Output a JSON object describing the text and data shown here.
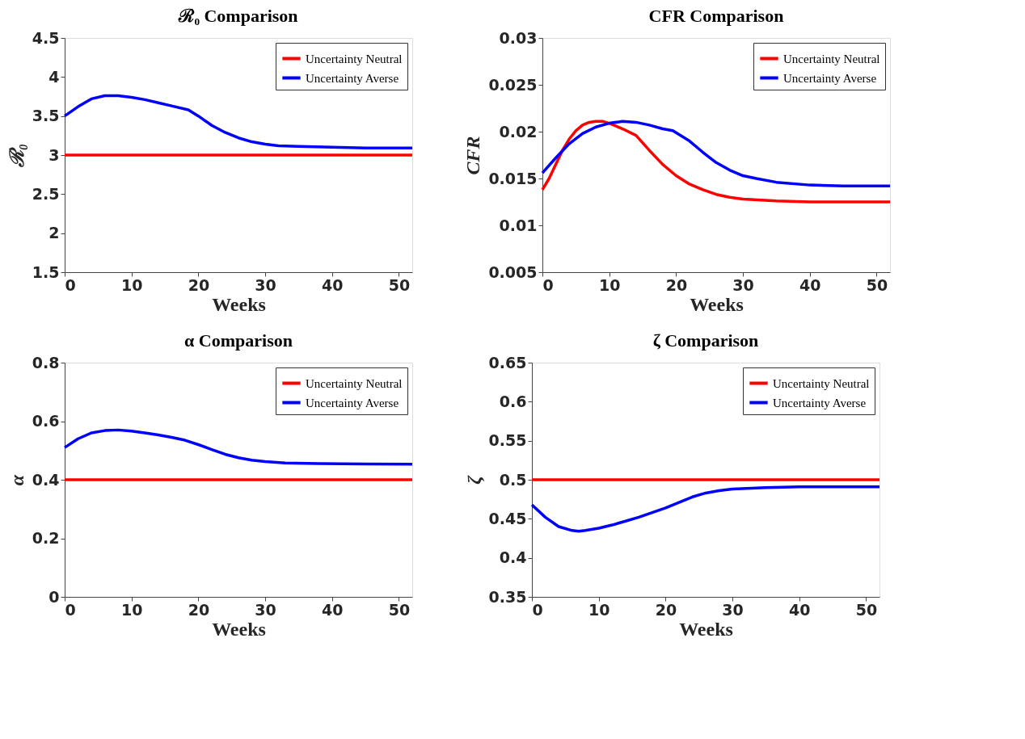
{
  "chart_data": [
    {
      "type": "line",
      "title": "ℛ₀ Comparison",
      "xlabel": "Weeks",
      "ylabel": "ℛ₀",
      "xlim": [
        0,
        52
      ],
      "xticks": [
        0,
        10,
        20,
        30,
        40,
        50
      ],
      "ylim": [
        1.5,
        4.5
      ],
      "yticks": [
        1.5,
        2,
        2.5,
        3,
        3.5,
        4,
        4.5
      ],
      "legend": "top right",
      "grid": false,
      "series": [
        {
          "name": "Uncertainty Neutral",
          "color": "#ff0000",
          "x": [
            0,
            52
          ],
          "values": [
            3,
            3
          ]
        },
        {
          "name": "Uncertainty Averse",
          "color": "#0000ff",
          "x": [
            0,
            2,
            4,
            6,
            8,
            10,
            12,
            14,
            16,
            18.5,
            20,
            22,
            24,
            26,
            28,
            30,
            32,
            35,
            40,
            45,
            52
          ],
          "values": [
            3.5,
            3.62,
            3.72,
            3.76,
            3.76,
            3.74,
            3.71,
            3.67,
            3.63,
            3.58,
            3.5,
            3.38,
            3.29,
            3.22,
            3.17,
            3.14,
            3.12,
            3.11,
            3.1,
            3.09,
            3.09
          ]
        }
      ]
    },
    {
      "type": "line",
      "title": "CFR Comparison",
      "xlabel": "Weeks",
      "ylabel": "CFR",
      "xlim": [
        0,
        52
      ],
      "xticks": [
        0,
        10,
        20,
        30,
        40,
        50
      ],
      "ylim": [
        0.005,
        0.03
      ],
      "yticks": [
        0.005,
        0.01,
        0.015,
        0.02,
        0.025,
        0.03
      ],
      "legend": "top right",
      "grid": false,
      "series": [
        {
          "name": "Uncertainty Neutral",
          "color": "#ff0000",
          "x": [
            0,
            1,
            2,
            3,
            4,
            5,
            6,
            7,
            8,
            9,
            10,
            12,
            14,
            16,
            18,
            20,
            22,
            24,
            26,
            28,
            30,
            35,
            40,
            52
          ],
          "values": [
            0.0138,
            0.015,
            0.0165,
            0.018,
            0.0192,
            0.0201,
            0.0207,
            0.021,
            0.0211,
            0.0211,
            0.0209,
            0.0203,
            0.0196,
            0.018,
            0.0165,
            0.0153,
            0.0144,
            0.0138,
            0.0133,
            0.013,
            0.0128,
            0.0126,
            0.0125,
            0.0125
          ]
        },
        {
          "name": "Uncertainty Averse",
          "color": "#0000ff",
          "x": [
            0,
            2,
            4,
            6,
            8,
            10,
            12,
            14,
            16,
            18,
            19.5,
            22,
            24,
            26,
            28,
            30,
            32,
            35,
            40,
            45,
            52
          ],
          "values": [
            0.0156,
            0.0172,
            0.0187,
            0.0198,
            0.0205,
            0.0209,
            0.0211,
            0.021,
            0.0207,
            0.0203,
            0.0201,
            0.019,
            0.0178,
            0.0167,
            0.0159,
            0.0153,
            0.015,
            0.0146,
            0.0143,
            0.0142,
            0.0142
          ]
        }
      ]
    },
    {
      "type": "line",
      "title": "α Comparison",
      "xlabel": "Weeks",
      "ylabel": "α",
      "xlim": [
        0,
        52
      ],
      "xticks": [
        0,
        10,
        20,
        30,
        40,
        50
      ],
      "ylim": [
        0,
        0.8
      ],
      "yticks": [
        0,
        0.2,
        0.4,
        0.6,
        0.8
      ],
      "legend": "top right",
      "grid": false,
      "series": [
        {
          "name": "Uncertainty Neutral",
          "color": "#ff0000",
          "x": [
            0,
            52
          ],
          "values": [
            0.4,
            0.4
          ]
        },
        {
          "name": "Uncertainty Averse",
          "color": "#0000ff",
          "x": [
            0,
            2,
            4,
            6,
            8,
            10,
            12,
            14,
            16,
            18,
            20,
            22,
            24,
            26,
            28,
            30,
            33,
            38,
            45,
            52
          ],
          "values": [
            0.51,
            0.54,
            0.56,
            0.568,
            0.57,
            0.566,
            0.56,
            0.553,
            0.545,
            0.535,
            0.52,
            0.503,
            0.487,
            0.475,
            0.467,
            0.462,
            0.457,
            0.455,
            0.454,
            0.453
          ]
        }
      ]
    },
    {
      "type": "line",
      "title": "ζ Comparison",
      "xlabel": "Weeks",
      "ylabel": "ζ",
      "xlim": [
        0,
        52
      ],
      "xticks": [
        0,
        10,
        20,
        30,
        40,
        50
      ],
      "ylim": [
        0.35,
        0.65
      ],
      "yticks": [
        0.35,
        0.4,
        0.45,
        0.5,
        0.55,
        0.6,
        0.65
      ],
      "legend": "top right",
      "grid": false,
      "series": [
        {
          "name": "Uncertainty Neutral",
          "color": "#ff0000",
          "x": [
            0,
            52
          ],
          "values": [
            0.5,
            0.5
          ]
        },
        {
          "name": "Uncertainty Averse",
          "color": "#0000ff",
          "x": [
            0,
            2,
            4,
            6,
            7,
            8,
            10,
            12,
            14,
            16,
            18,
            20,
            22,
            24,
            26,
            28,
            30,
            35,
            40,
            52
          ],
          "values": [
            0.468,
            0.452,
            0.44,
            0.435,
            0.434,
            0.435,
            0.438,
            0.442,
            0.447,
            0.452,
            0.458,
            0.464,
            0.471,
            0.478,
            0.483,
            0.486,
            0.488,
            0.49,
            0.491,
            0.491
          ]
        }
      ]
    }
  ]
}
